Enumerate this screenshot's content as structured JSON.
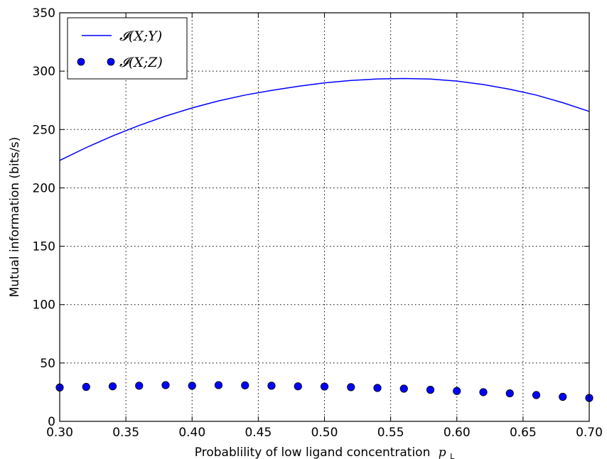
{
  "chart_data": {
    "type": "line",
    "title": "",
    "xlabel": "Probablility of low ligand concentration",
    "xlabel_math": "p",
    "xlabel_math_sub": "L",
    "ylabel": "Mutual information (bits/s)",
    "xlim": [
      0.3,
      0.7
    ],
    "ylim": [
      0,
      350
    ],
    "xticks": [
      0.3,
      0.35,
      0.4,
      0.45,
      0.5,
      0.55,
      0.6,
      0.65,
      0.7
    ],
    "xtick_labels": [
      "0.30",
      "0.35",
      "0.40",
      "0.45",
      "0.50",
      "0.55",
      "0.60",
      "0.65",
      "0.70"
    ],
    "yticks": [
      0,
      50,
      100,
      150,
      200,
      250,
      300,
      350
    ],
    "ytick_labels": [
      "0",
      "50",
      "100",
      "150",
      "200",
      "250",
      "300",
      "350"
    ],
    "grid": true,
    "legend_position": "top-left",
    "series": [
      {
        "name": "𝓘(X;Y)",
        "style": "line",
        "color": "#0000ff",
        "x": [
          0.3,
          0.32,
          0.34,
          0.36,
          0.38,
          0.4,
          0.42,
          0.44,
          0.46,
          0.48,
          0.5,
          0.52,
          0.54,
          0.56,
          0.58,
          0.6,
          0.62,
          0.64,
          0.66,
          0.68,
          0.7
        ],
        "values": [
          223.5,
          234.5,
          244.5,
          253.5,
          261.5,
          268.5,
          274.5,
          279.5,
          283.5,
          287,
          290,
          292,
          293.3,
          293.7,
          293.2,
          291.5,
          288.5,
          284.5,
          279.5,
          273,
          265.5
        ]
      },
      {
        "name": "𝓘(X;Z)",
        "style": "markers",
        "color": "#0000ff",
        "x": [
          0.3,
          0.32,
          0.34,
          0.36,
          0.38,
          0.4,
          0.42,
          0.44,
          0.46,
          0.48,
          0.5,
          0.52,
          0.54,
          0.56,
          0.58,
          0.6,
          0.62,
          0.64,
          0.66,
          0.68,
          0.7
        ],
        "values": [
          29,
          29.5,
          30,
          30.5,
          31,
          30.5,
          31,
          30.8,
          30.5,
          30,
          29.8,
          29.3,
          28.6,
          28,
          27,
          26,
          25,
          24,
          22.5,
          21,
          20
        ]
      }
    ]
  }
}
